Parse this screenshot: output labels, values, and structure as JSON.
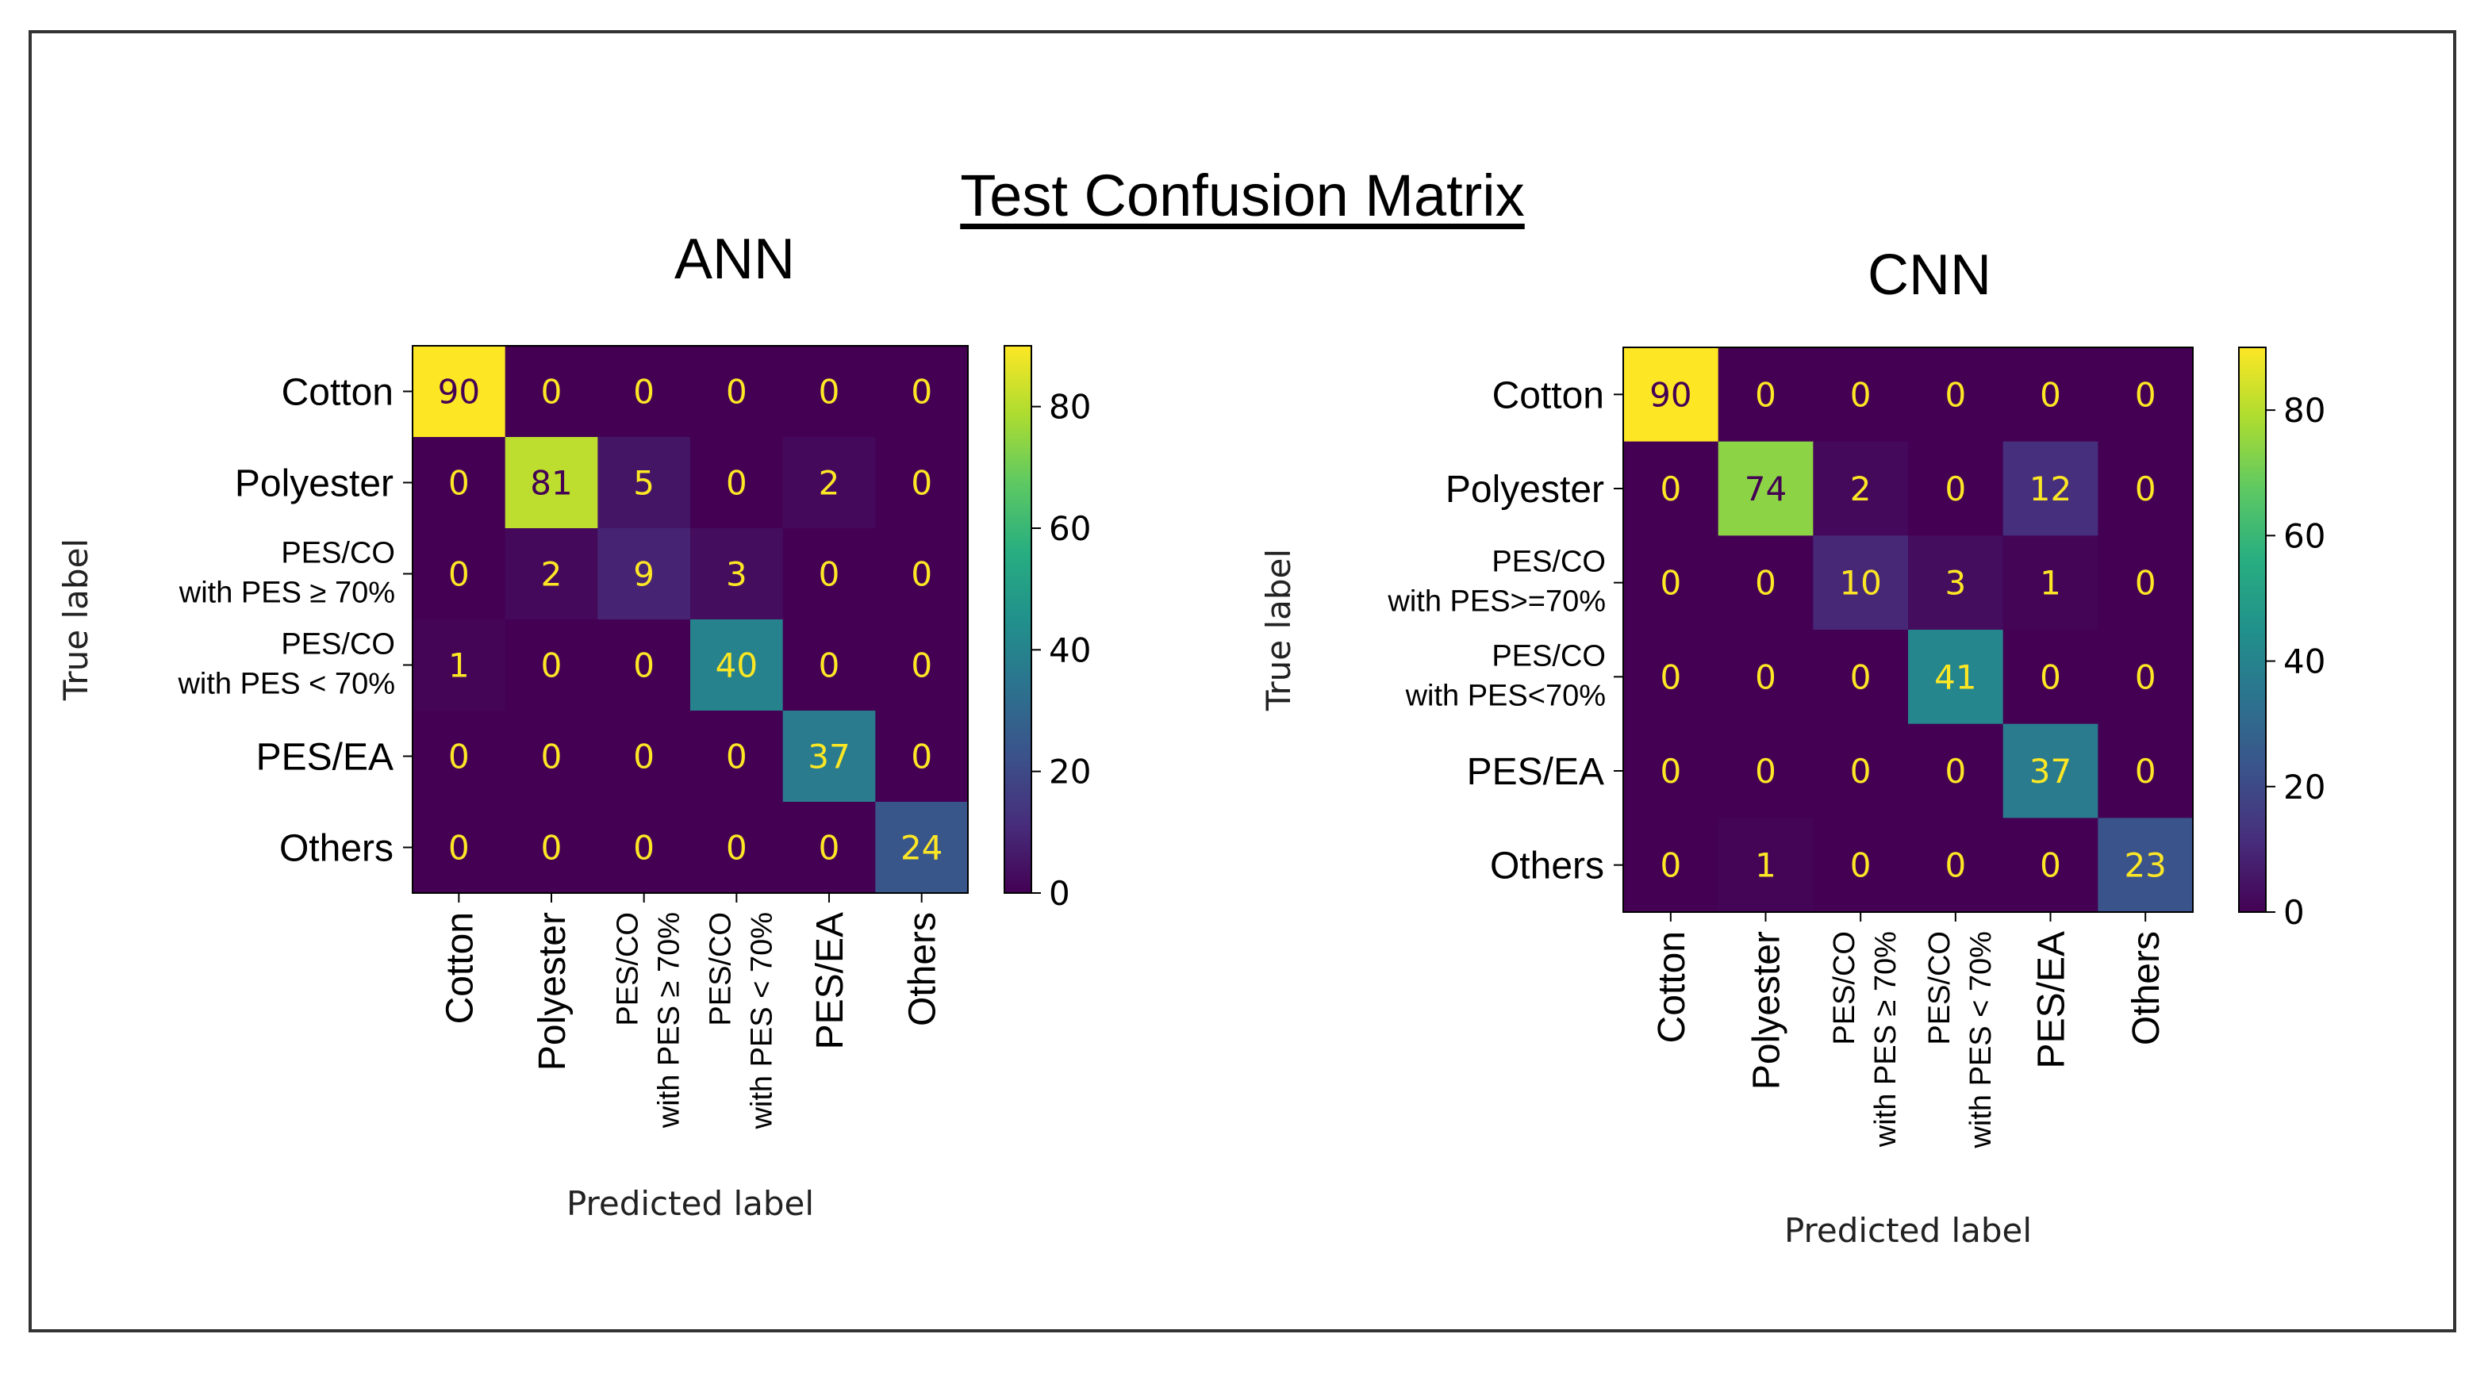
{
  "title": "Test Confusion Matrix",
  "chart_data": [
    {
      "type": "heatmap",
      "title": "ANN",
      "xlabel": "Predicted label",
      "ylabel": "True label",
      "row_labels": [
        [
          "Cotton"
        ],
        [
          "Polyester"
        ],
        [
          "PES/CO",
          "with PES ≥ 70%"
        ],
        [
          "PES/CO",
          "with PES < 70%"
        ],
        [
          "PES/EA"
        ],
        [
          "Others"
        ]
      ],
      "col_labels": [
        [
          "Cotton"
        ],
        [
          "Polyester"
        ],
        [
          "PES/CO",
          "with PES ≥ 70%"
        ],
        [
          "PES/CO",
          "with PES < 70%"
        ],
        [
          "PES/EA"
        ],
        [
          "Others"
        ]
      ],
      "matrix": [
        [
          90,
          0,
          0,
          0,
          0,
          0
        ],
        [
          0,
          81,
          5,
          0,
          2,
          0
        ],
        [
          0,
          2,
          9,
          3,
          0,
          0
        ],
        [
          1,
          0,
          0,
          40,
          0,
          0
        ],
        [
          0,
          0,
          0,
          0,
          37,
          0
        ],
        [
          0,
          0,
          0,
          0,
          0,
          24
        ]
      ],
      "colorbar": {
        "colormap": "viridis",
        "vmin": 0,
        "vmax": 90,
        "ticks": [
          0,
          20,
          40,
          60,
          80
        ]
      }
    },
    {
      "type": "heatmap",
      "title": "CNN",
      "xlabel": "Predicted label",
      "ylabel": "True label",
      "row_labels": [
        [
          "Cotton"
        ],
        [
          "Polyester"
        ],
        [
          "PES/CO",
          "with PES>=70%"
        ],
        [
          "PES/CO",
          "with PES<70%"
        ],
        [
          "PES/EA"
        ],
        [
          "Others"
        ]
      ],
      "col_labels": [
        [
          "Cotton"
        ],
        [
          "Polyester"
        ],
        [
          "PES/CO",
          "with PES ≥ 70%"
        ],
        [
          "PES/CO",
          "with PES < 70%"
        ],
        [
          "PES/EA"
        ],
        [
          "Others"
        ]
      ],
      "matrix": [
        [
          90,
          0,
          0,
          0,
          0,
          0
        ],
        [
          0,
          74,
          2,
          0,
          12,
          0
        ],
        [
          0,
          0,
          10,
          3,
          1,
          0
        ],
        [
          0,
          0,
          0,
          41,
          0,
          0
        ],
        [
          0,
          0,
          0,
          0,
          37,
          0
        ],
        [
          0,
          1,
          0,
          0,
          0,
          23
        ]
      ],
      "colorbar": {
        "colormap": "viridis",
        "vmin": 0,
        "vmax": 90,
        "ticks": [
          0,
          20,
          40,
          60,
          80
        ]
      }
    }
  ]
}
